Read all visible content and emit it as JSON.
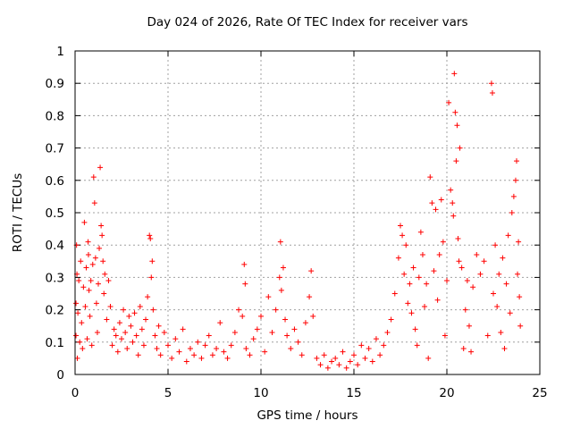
{
  "chart_data": {
    "type": "scatter",
    "title": "Day 024 of 2026, Rate Of TEC Index for receiver vars",
    "xlabel": "GPS time / hours",
    "ylabel": "ROTI / TECUs",
    "xlim": [
      0,
      25
    ],
    "ylim": [
      0,
      1
    ],
    "xticks": [
      "0",
      "5",
      "10",
      "15",
      "20",
      "25"
    ],
    "yticks": [
      "0",
      "0.1",
      "0.2",
      "0.3",
      "0.4",
      "0.5",
      "0.6",
      "0.7",
      "0.8",
      "0.9",
      "1"
    ],
    "grid": true,
    "marker": "+",
    "color": "#ff0000",
    "series": [
      {
        "values": [
          [
            0.05,
            0.12
          ],
          [
            0.05,
            0.22
          ],
          [
            0.08,
            0.4
          ],
          [
            0.1,
            0.31
          ],
          [
            0.12,
            0.05
          ],
          [
            0.15,
            0.19
          ],
          [
            0.2,
            0.29
          ],
          [
            0.25,
            0.1
          ],
          [
            0.3,
            0.35
          ],
          [
            0.35,
            0.16
          ],
          [
            0.4,
            0.08
          ],
          [
            0.45,
            0.27
          ],
          [
            0.5,
            0.47
          ],
          [
            0.55,
            0.21
          ],
          [
            0.6,
            0.33
          ],
          [
            0.65,
            0.11
          ],
          [
            0.7,
            0.41
          ],
          [
            0.72,
            0.37
          ],
          [
            0.75,
            0.26
          ],
          [
            0.8,
            0.18
          ],
          [
            0.85,
            0.29
          ],
          [
            0.9,
            0.09
          ],
          [
            0.95,
            0.34
          ],
          [
            1.0,
            0.61
          ],
          [
            1.05,
            0.53
          ],
          [
            1.1,
            0.36
          ],
          [
            1.15,
            0.22
          ],
          [
            1.2,
            0.13
          ],
          [
            1.25,
            0.28
          ],
          [
            1.3,
            0.39
          ],
          [
            1.35,
            0.64
          ],
          [
            1.4,
            0.46
          ],
          [
            1.45,
            0.43
          ],
          [
            1.5,
            0.35
          ],
          [
            1.55,
            0.25
          ],
          [
            1.6,
            0.31
          ],
          [
            1.7,
            0.17
          ],
          [
            1.8,
            0.29
          ],
          [
            1.9,
            0.21
          ],
          [
            2.0,
            0.09
          ],
          [
            2.1,
            0.14
          ],
          [
            2.2,
            0.12
          ],
          [
            2.3,
            0.07
          ],
          [
            2.4,
            0.16
          ],
          [
            2.5,
            0.11
          ],
          [
            2.6,
            0.2
          ],
          [
            2.7,
            0.13
          ],
          [
            2.8,
            0.08
          ],
          [
            2.9,
            0.18
          ],
          [
            3.0,
            0.15
          ],
          [
            3.1,
            0.1
          ],
          [
            3.2,
            0.19
          ],
          [
            3.3,
            0.12
          ],
          [
            3.4,
            0.06
          ],
          [
            3.5,
            0.21
          ],
          [
            3.6,
            0.14
          ],
          [
            3.7,
            0.09
          ],
          [
            3.8,
            0.17
          ],
          [
            3.9,
            0.24
          ],
          [
            4.0,
            0.43
          ],
          [
            4.05,
            0.42
          ],
          [
            4.1,
            0.3
          ],
          [
            4.15,
            0.35
          ],
          [
            4.2,
            0.2
          ],
          [
            4.3,
            0.12
          ],
          [
            4.4,
            0.08
          ],
          [
            4.5,
            0.15
          ],
          [
            4.6,
            0.06
          ],
          [
            4.8,
            0.13
          ],
          [
            5.0,
            0.09
          ],
          [
            5.2,
            0.05
          ],
          [
            5.4,
            0.11
          ],
          [
            5.6,
            0.07
          ],
          [
            5.8,
            0.14
          ],
          [
            6.0,
            0.04
          ],
          [
            6.2,
            0.08
          ],
          [
            6.4,
            0.06
          ],
          [
            6.6,
            0.1
          ],
          [
            6.8,
            0.05
          ],
          [
            7.0,
            0.09
          ],
          [
            7.2,
            0.12
          ],
          [
            7.4,
            0.06
          ],
          [
            7.6,
            0.08
          ],
          [
            7.8,
            0.16
          ],
          [
            8.0,
            0.07
          ],
          [
            8.2,
            0.05
          ],
          [
            8.4,
            0.09
          ],
          [
            8.6,
            0.13
          ],
          [
            8.8,
            0.2
          ],
          [
            9.0,
            0.18
          ],
          [
            9.1,
            0.34
          ],
          [
            9.15,
            0.28
          ],
          [
            9.2,
            0.08
          ],
          [
            9.4,
            0.06
          ],
          [
            9.6,
            0.11
          ],
          [
            9.8,
            0.14
          ],
          [
            10.0,
            0.18
          ],
          [
            10.2,
            0.07
          ],
          [
            10.4,
            0.24
          ],
          [
            10.6,
            0.13
          ],
          [
            10.8,
            0.2
          ],
          [
            11.0,
            0.3
          ],
          [
            11.05,
            0.41
          ],
          [
            11.1,
            0.26
          ],
          [
            11.2,
            0.33
          ],
          [
            11.3,
            0.17
          ],
          [
            11.4,
            0.12
          ],
          [
            11.6,
            0.08
          ],
          [
            11.8,
            0.14
          ],
          [
            12.0,
            0.1
          ],
          [
            12.2,
            0.06
          ],
          [
            12.4,
            0.16
          ],
          [
            12.6,
            0.24
          ],
          [
            12.7,
            0.32
          ],
          [
            12.8,
            0.18
          ],
          [
            13.0,
            0.05
          ],
          [
            13.2,
            0.03
          ],
          [
            13.4,
            0.06
          ],
          [
            13.6,
            0.02
          ],
          [
            13.8,
            0.04
          ],
          [
            14.0,
            0.05
          ],
          [
            14.2,
            0.03
          ],
          [
            14.4,
            0.07
          ],
          [
            14.6,
            0.02
          ],
          [
            14.8,
            0.04
          ],
          [
            15.0,
            0.06
          ],
          [
            15.2,
            0.03
          ],
          [
            15.4,
            0.09
          ],
          [
            15.6,
            0.05
          ],
          [
            15.8,
            0.08
          ],
          [
            16.0,
            0.04
          ],
          [
            16.2,
            0.11
          ],
          [
            16.4,
            0.06
          ],
          [
            16.6,
            0.09
          ],
          [
            16.8,
            0.13
          ],
          [
            17.0,
            0.17
          ],
          [
            17.2,
            0.25
          ],
          [
            17.4,
            0.36
          ],
          [
            17.5,
            0.46
          ],
          [
            17.6,
            0.43
          ],
          [
            17.7,
            0.31
          ],
          [
            17.8,
            0.4
          ],
          [
            17.9,
            0.22
          ],
          [
            18.0,
            0.28
          ],
          [
            18.1,
            0.19
          ],
          [
            18.2,
            0.33
          ],
          [
            18.3,
            0.14
          ],
          [
            18.4,
            0.09
          ],
          [
            18.5,
            0.3
          ],
          [
            18.6,
            0.44
          ],
          [
            18.7,
            0.37
          ],
          [
            18.8,
            0.21
          ],
          [
            18.9,
            0.28
          ],
          [
            19.0,
            0.05
          ],
          [
            19.1,
            0.61
          ],
          [
            19.2,
            0.53
          ],
          [
            19.3,
            0.32
          ],
          [
            19.4,
            0.51
          ],
          [
            19.5,
            0.23
          ],
          [
            19.6,
            0.37
          ],
          [
            19.7,
            0.54
          ],
          [
            19.8,
            0.41
          ],
          [
            19.9,
            0.12
          ],
          [
            20.0,
            0.29
          ],
          [
            20.1,
            0.84
          ],
          [
            20.2,
            0.57
          ],
          [
            20.3,
            0.53
          ],
          [
            20.35,
            0.49
          ],
          [
            20.4,
            0.93
          ],
          [
            20.45,
            0.81
          ],
          [
            20.5,
            0.66
          ],
          [
            20.55,
            0.77
          ],
          [
            20.6,
            0.42
          ],
          [
            20.65,
            0.35
          ],
          [
            20.7,
            0.7
          ],
          [
            20.8,
            0.33
          ],
          [
            20.9,
            0.08
          ],
          [
            21.0,
            0.2
          ],
          [
            21.1,
            0.29
          ],
          [
            21.2,
            0.15
          ],
          [
            21.3,
            0.07
          ],
          [
            21.4,
            0.27
          ],
          [
            21.6,
            0.37
          ],
          [
            21.8,
            0.31
          ],
          [
            22.0,
            0.35
          ],
          [
            22.2,
            0.12
          ],
          [
            22.4,
            0.9
          ],
          [
            22.45,
            0.87
          ],
          [
            22.5,
            0.25
          ],
          [
            22.6,
            0.4
          ],
          [
            22.7,
            0.21
          ],
          [
            22.8,
            0.31
          ],
          [
            22.9,
            0.13
          ],
          [
            23.0,
            0.36
          ],
          [
            23.1,
            0.08
          ],
          [
            23.2,
            0.28
          ],
          [
            23.3,
            0.43
          ],
          [
            23.4,
            0.19
          ],
          [
            23.5,
            0.5
          ],
          [
            23.6,
            0.55
          ],
          [
            23.7,
            0.6
          ],
          [
            23.75,
            0.66
          ],
          [
            23.8,
            0.31
          ],
          [
            23.85,
            0.41
          ],
          [
            23.9,
            0.24
          ],
          [
            23.95,
            0.15
          ]
        ]
      }
    ]
  }
}
